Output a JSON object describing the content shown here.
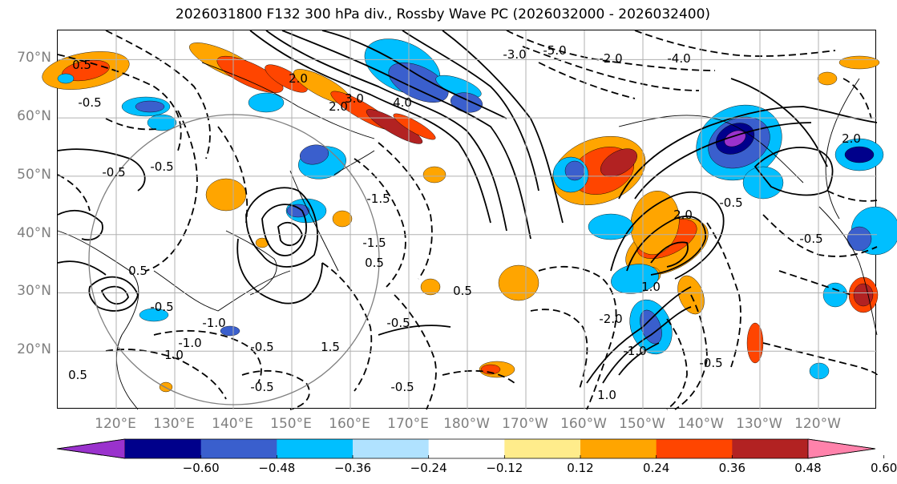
{
  "title": "2026031800 F132 300 hPa div., Rossby Wave PC (2026032000 - 2026032400)",
  "axes": {
    "lat_labels": [
      "70°N",
      "60°N",
      "50°N",
      "40°N",
      "30°N",
      "20°N"
    ],
    "lat_values": [
      70,
      60,
      50,
      40,
      30,
      20
    ],
    "lon_labels": [
      "120°E",
      "130°E",
      "140°E",
      "150°E",
      "160°E",
      "170°E",
      "180°W",
      "170°W",
      "160°W",
      "150°W",
      "140°W",
      "130°W",
      "120°W"
    ],
    "lon_values": [
      120,
      130,
      140,
      150,
      160,
      170,
      180,
      190,
      200,
      210,
      220,
      230,
      240
    ]
  },
  "colorbar": {
    "tick_labels": [
      "−0.60",
      "−0.48",
      "−0.36",
      "−0.24",
      "−0.12",
      "0.12",
      "0.24",
      "0.36",
      "0.48",
      "0.60"
    ],
    "levels": [
      -0.6,
      -0.48,
      -0.36,
      -0.24,
      -0.12,
      0.12,
      0.24,
      0.36,
      0.48,
      0.6
    ],
    "colors": [
      "#9a32cd",
      "#00008b",
      "#3a5fcd",
      "#00bfff",
      "#b0e2ff",
      "#ffffff",
      "#ffec8b",
      "#ffa500",
      "#ff4500",
      "#b22222",
      "#ff82ab"
    ],
    "extend": "both"
  },
  "contour_labels": [
    "0.5",
    "-0.5",
    "-0.5",
    "-1.5",
    "-1.0",
    "2.0",
    "3.0",
    "4.0",
    "-3.0",
    "-5.0",
    "-2.0",
    "-4.0",
    "-0.5",
    "1.0",
    "1.5",
    "-0.5",
    "0.5",
    "-1.0",
    "-0.5",
    "-0.5",
    "0.5",
    "-0.5",
    "-0.5",
    "0.5",
    "2.0",
    "1.0",
    "-1.0",
    "-0.5",
    "-0.5",
    "-1.5",
    "0.5",
    "2.0",
    "2.0",
    "1.0",
    "-2.0",
    "-0.5"
  ],
  "chart_data": {
    "type": "heatmap",
    "title": "2026031800 F132 300 hPa div., Rossby Wave PC (2026032000 - 2026032400)",
    "x_axis": {
      "range": [
        110,
        250
      ],
      "units": "degrees longitude"
    },
    "y_axis": {
      "range": [
        10,
        75
      ],
      "units": "degrees latitude"
    },
    "grid": true,
    "shaded_field": "300 hPa divergence",
    "contour_field": "Rossby Wave PC",
    "negative_contours": "dashed",
    "colorbar_location": "bottom"
  }
}
